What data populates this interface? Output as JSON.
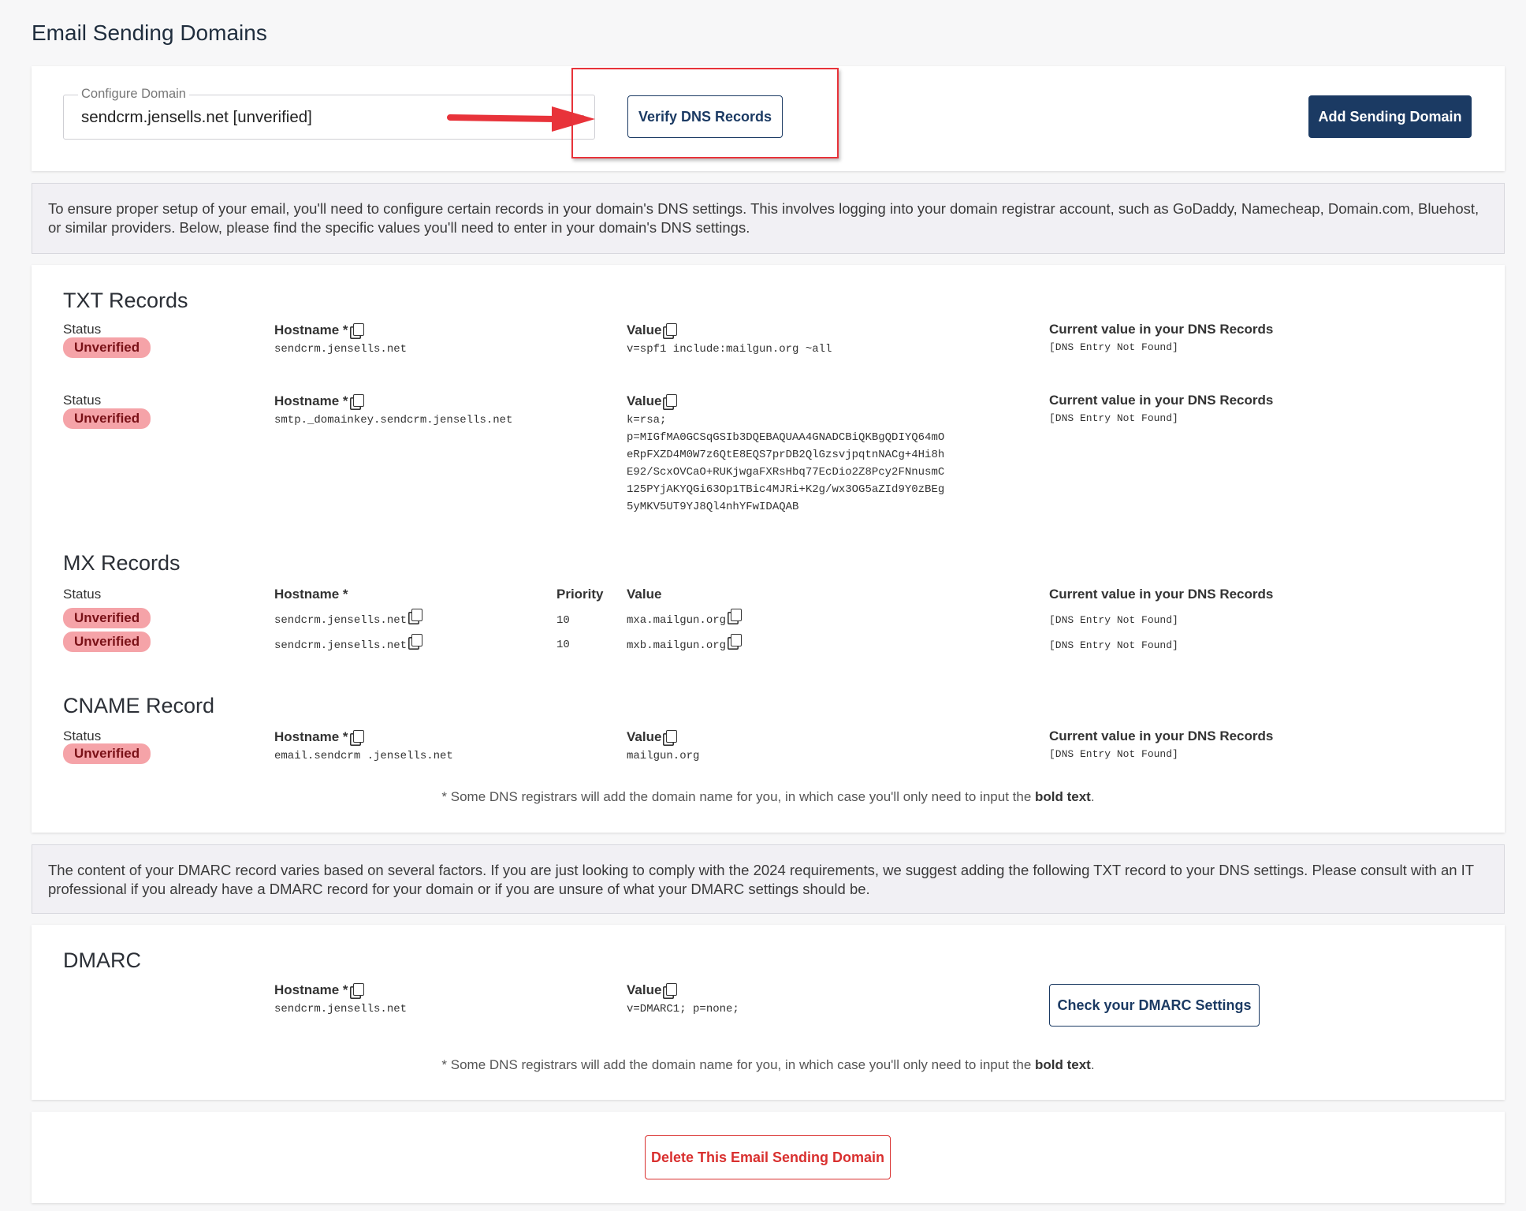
{
  "page_title": "Email Sending Domains",
  "toolbar": {
    "configure_label": "Configure Domain",
    "selected_domain": "sendcrm.jensells.net [unverified]",
    "verify_label": "Verify DNS Records",
    "add_label": "Add Sending Domain"
  },
  "info1": "To ensure proper setup of your email, you'll need to configure certain records in your domain's DNS settings. This involves logging into your domain registrar account, such as GoDaddy, Namecheap, Domain.com, Bluehost, or similar providers. Below, please find the specific values you'll need to enter in your domain's DNS settings.",
  "labels": {
    "status": "Status",
    "hostname": "Hostname *",
    "value": "Value",
    "priority": "Priority",
    "current": "Current value in your DNS Records",
    "unverified": "Unverified",
    "not_found": "[DNS Entry Not Found]"
  },
  "txt": {
    "heading": "TXT Records",
    "records": [
      {
        "hostname": "sendcrm.jensells.net",
        "value": "v=spf1 include:mailgun.org ~all"
      },
      {
        "hostname": "smtp._domainkey.sendcrm.jensells.net",
        "value": "k=rsa;\np=MIGfMA0GCSqGSIb3DQEBAQUAA4GNADCBiQKBgQDIYQ64mO\neRpFXZD4M0W7z6QtE8EQS7prDB2QlGzsvjpqtnNACg+4Hi8h\nE92/ScxOVCaO+RUKjwgaFXRsHbq77EcDio2Z8Pcy2FNnusmC\n125PYjAKYQGi63Op1TBic4MJRi+K2g/wx3OG5aZId9Y0zBEg\n5yMKV5UT9YJ8Ql4nhYFwIDAQAB"
      }
    ]
  },
  "mx": {
    "heading": "MX Records",
    "records": [
      {
        "hostname": "sendcrm.jensells.net",
        "priority": "10",
        "value": "mxa.mailgun.org"
      },
      {
        "hostname": "sendcrm.jensells.net",
        "priority": "10",
        "value": "mxb.mailgun.org"
      }
    ]
  },
  "cname": {
    "heading": "CNAME Record",
    "hostname": "email.sendcrm .jensells.net",
    "value": "mailgun.org"
  },
  "note_prefix": "* Some DNS registrars will add the domain name for you, in which case you'll only need to input the ",
  "note_bold": "bold text",
  "note_suffix": ".",
  "info2": "The content of your DMARC record varies based on several factors. If you are just looking to comply with the 2024 requirements, we suggest adding the following TXT record to your DNS settings. Please consult with an IT professional if you already have a DMARC record for your domain or if you are unsure of what your DMARC settings should be.",
  "dmarc": {
    "heading": "DMARC",
    "hostname": "sendcrm.jensells.net",
    "value": "v=DMARC1; p=none;",
    "check_label": "Check your DMARC Settings"
  },
  "delete_label": "Delete This Email Sending Domain",
  "colors": {
    "navy": "#1b3a63",
    "badge": "#f5a3a8",
    "danger": "#d9302f",
    "highlight": "#e8333a"
  }
}
